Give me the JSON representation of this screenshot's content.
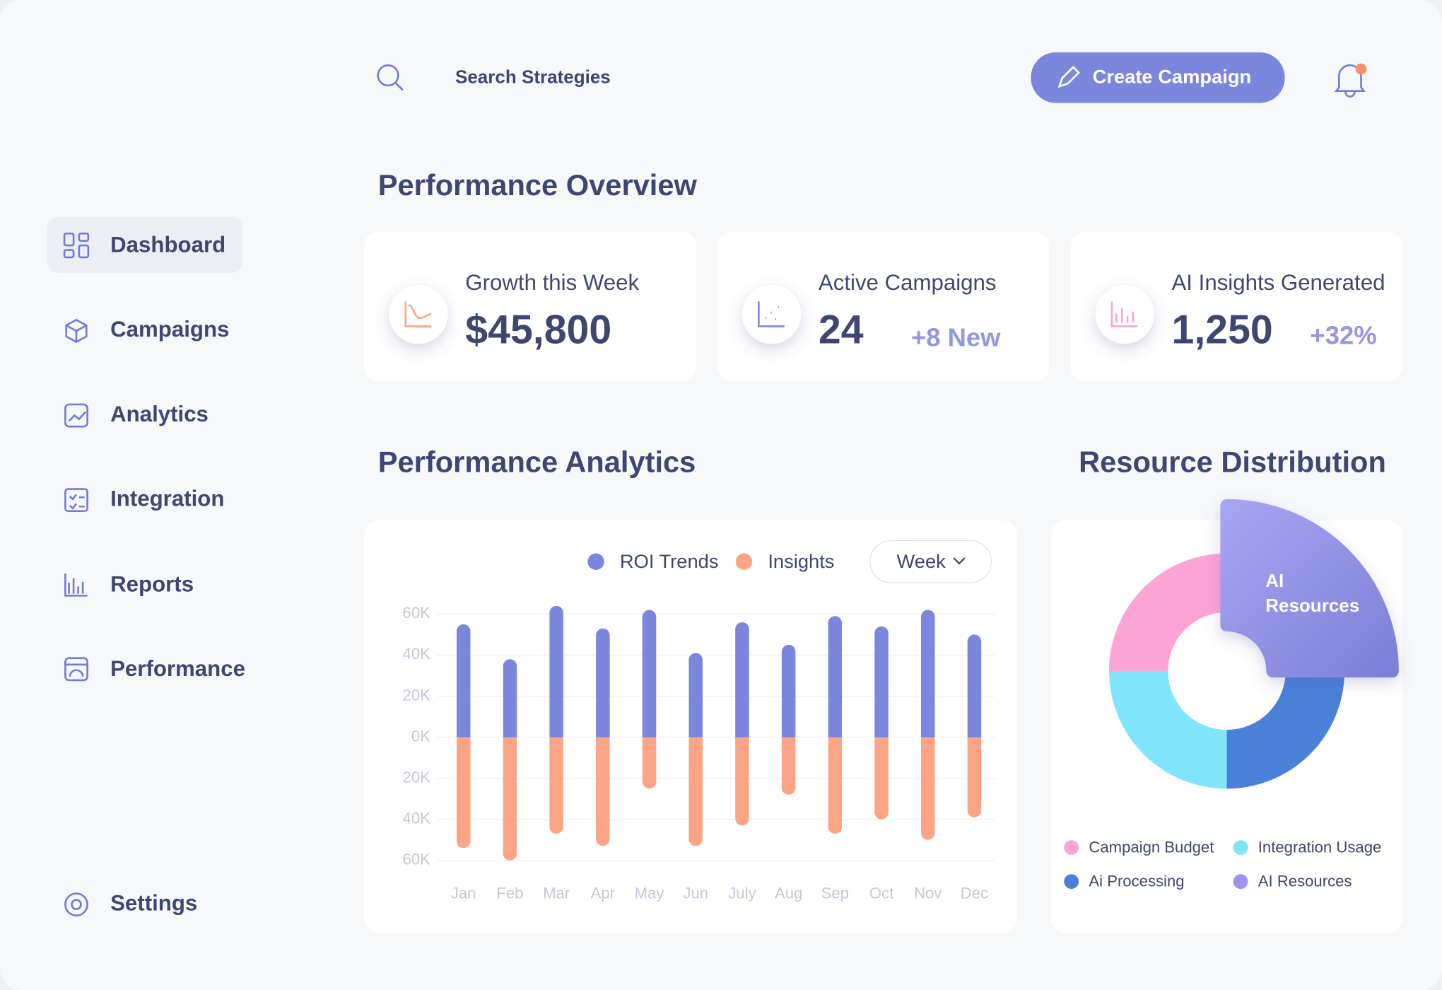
{
  "search": {
    "placeholder": "Search Strategies"
  },
  "header": {
    "button": "Create Campaign"
  },
  "nav": {
    "items": [
      "Dashboard",
      "Campaigns",
      "Analytics",
      "Integration",
      "Reports",
      "Performance"
    ],
    "settings": "Settings"
  },
  "overview": {
    "title": "Performance Overview",
    "cards": [
      {
        "label": "Growth this Week",
        "value": "$45,800"
      },
      {
        "label": "Active Campaigns",
        "value": "24",
        "change": "+8 New"
      },
      {
        "label": "AI Insights Generated",
        "value": "1,250",
        "change": "+32%"
      }
    ]
  },
  "sections": {
    "analytics": "Performance Analytics",
    "distribution": "Resource Distribution"
  },
  "period": "Week",
  "chart_data": [
    {
      "type": "bar",
      "categories": [
        "Jan",
        "Feb",
        "Mar",
        "Apr",
        "May",
        "Jun",
        "July",
        "Aug",
        "Sep",
        "Oct",
        "Nov",
        "Dec"
      ],
      "series": [
        {
          "name": "ROI Trends",
          "color": "#7b86dd",
          "values": [
            55,
            38,
            64,
            53,
            62,
            41,
            56,
            45,
            59,
            54,
            62,
            50
          ]
        },
        {
          "name": "Insights",
          "color": "#fba486",
          "values": [
            -54,
            -60,
            -47,
            -53,
            -25,
            -53,
            -43,
            -28,
            -47,
            -40,
            -50,
            -39
          ]
        }
      ],
      "ylim": [
        -60,
        60
      ],
      "yticks": [
        {
          "value": 60,
          "label": "60K"
        },
        {
          "value": 40,
          "label": "40K"
        },
        {
          "value": 20,
          "label": "20K"
        },
        {
          "value": 0,
          "label": "0K"
        },
        {
          "value": -20,
          "label": "20K"
        },
        {
          "value": -40,
          "label": "40K"
        },
        {
          "value": -60,
          "label": "60K"
        }
      ],
      "grid": true
    },
    {
      "type": "pie",
      "categories": [
        "Campaign Budget",
        "Integration Usage",
        "Ai Processing",
        "AI Resources"
      ],
      "values": [
        25,
        25,
        25,
        25
      ],
      "colors": [
        "#fca4d6",
        "#80e5fb",
        "#4a80d8",
        "#9a96ea"
      ],
      "donut": true,
      "explode": 3
    }
  ]
}
